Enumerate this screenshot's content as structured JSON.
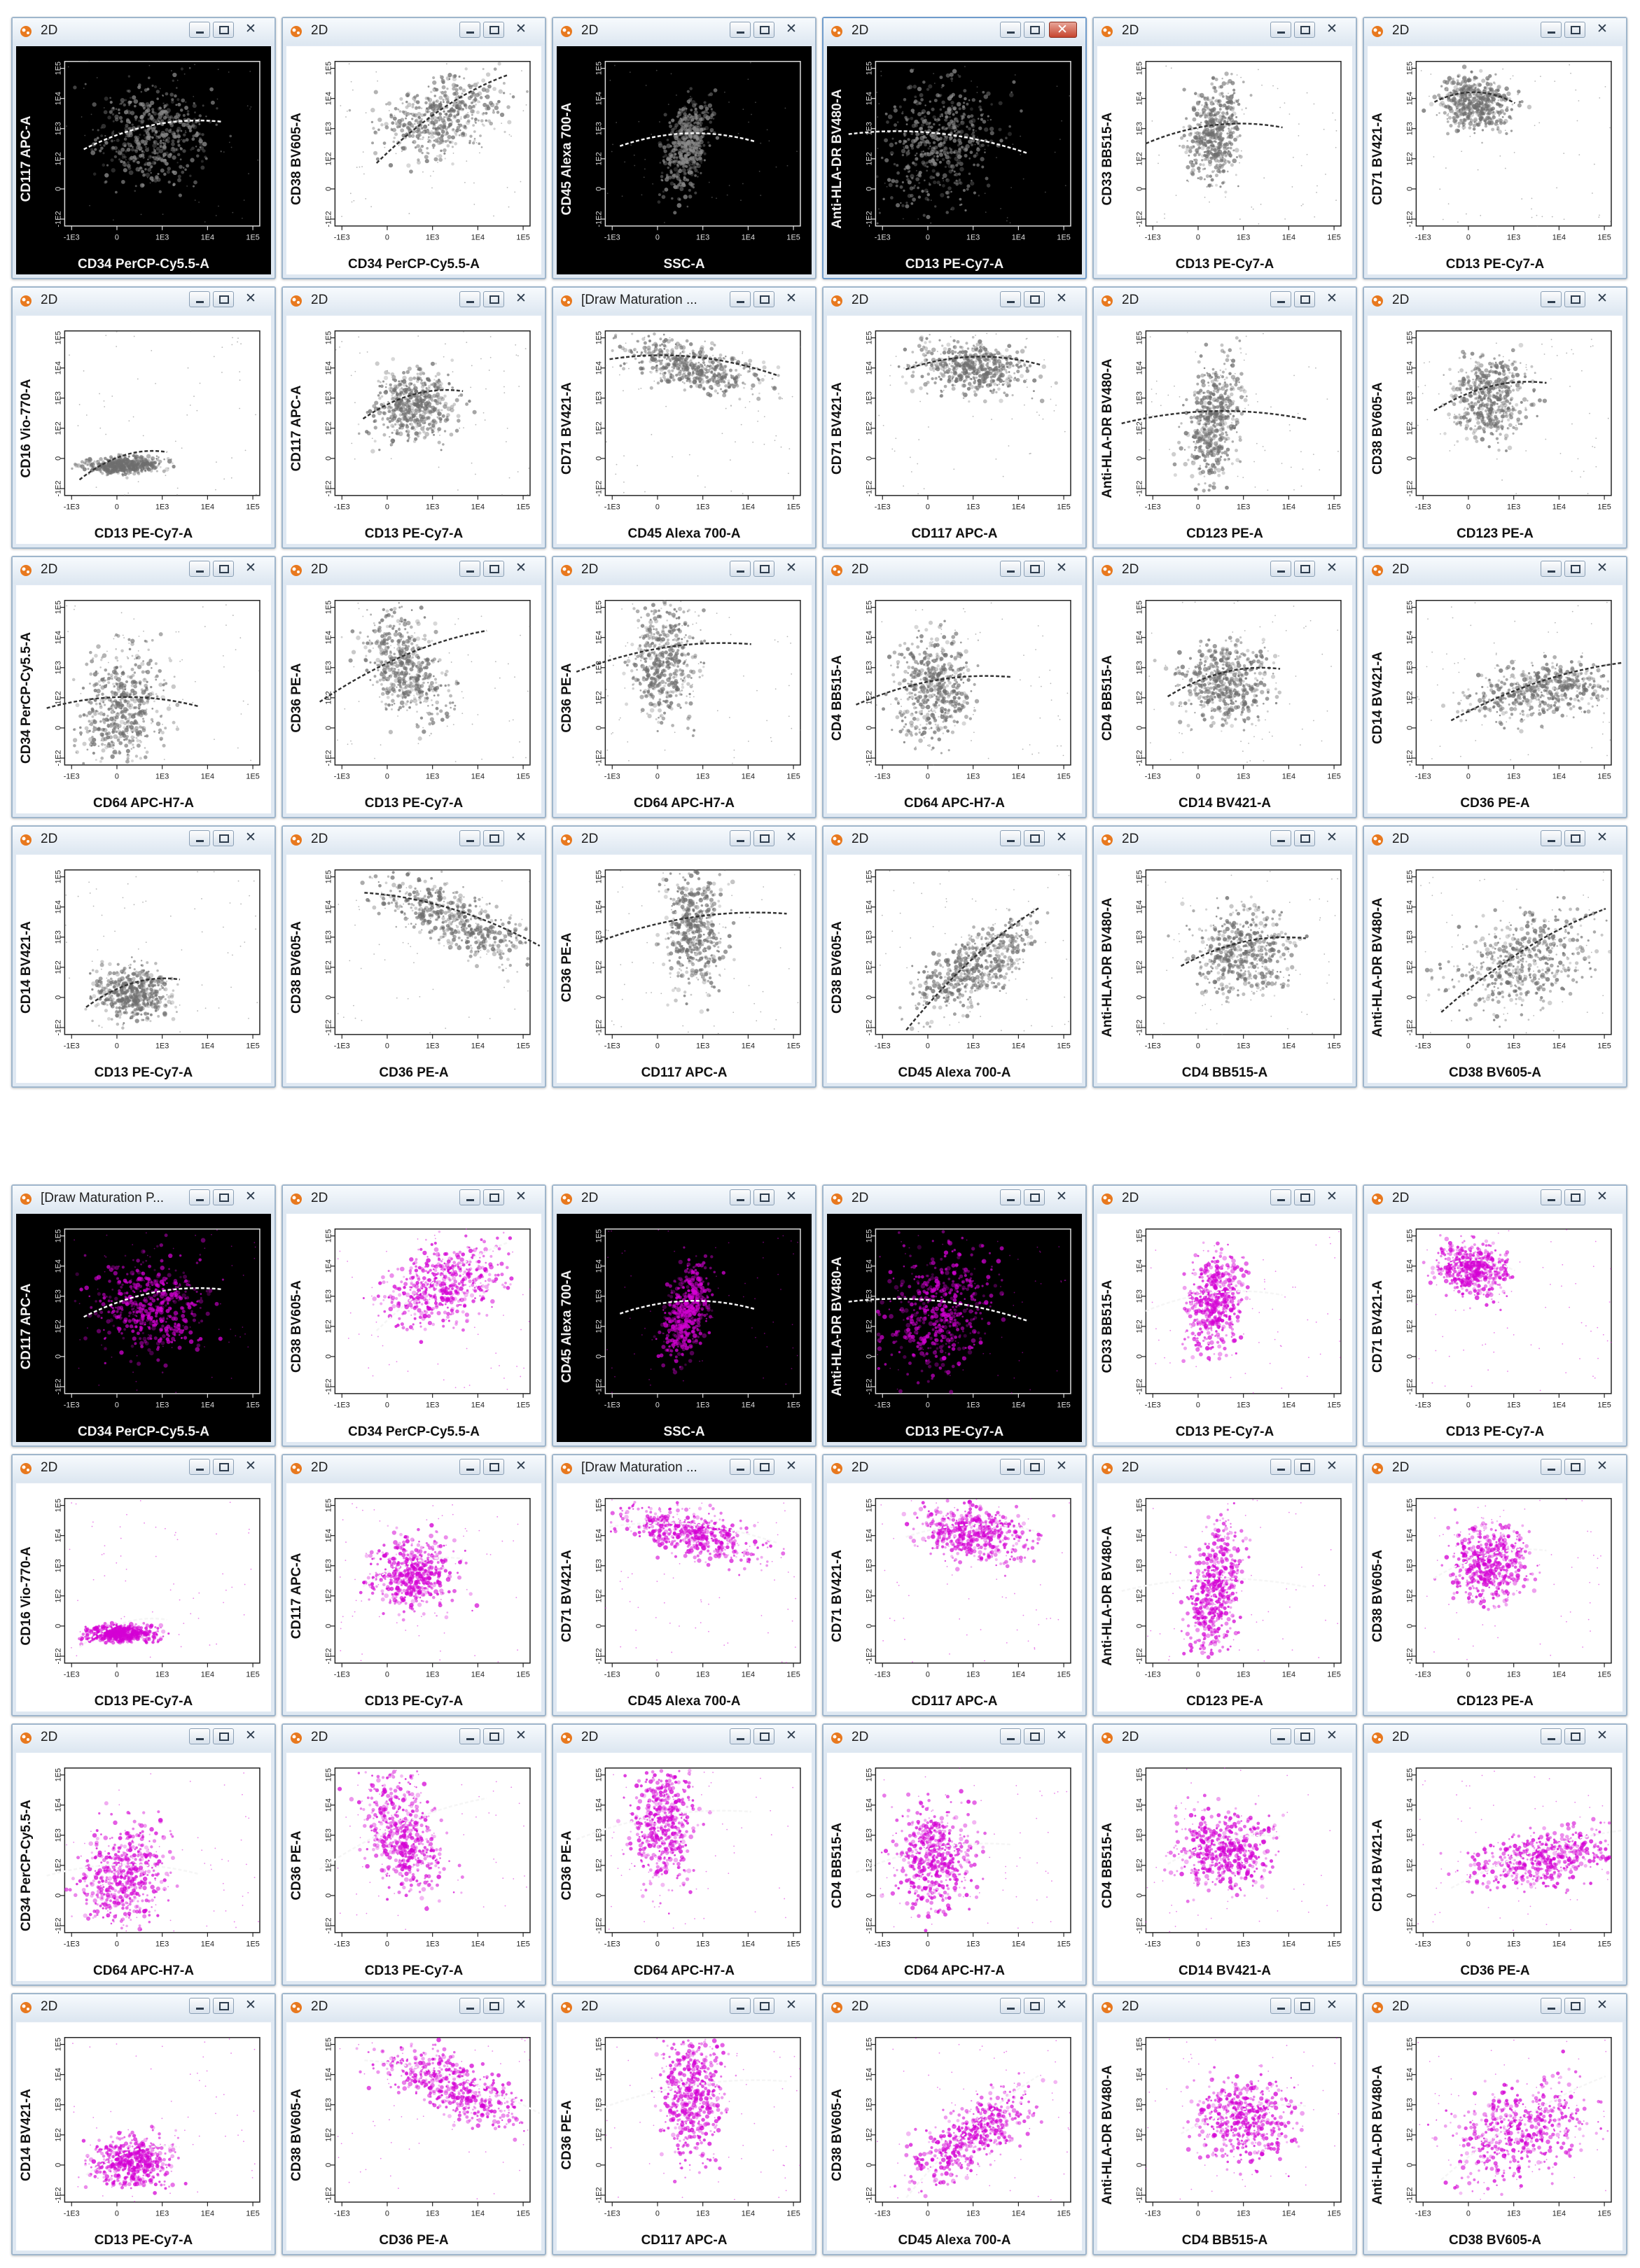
{
  "theme": {
    "gray_block": "#6e6e6e",
    "magenta_block": "#d400d4",
    "trajectory_gray": "#f0f0f0",
    "trajectory_magenta": "#f7f7f7"
  },
  "title_default": "2D",
  "title_draw": "[Draw Maturation ...",
  "title_draw_short": "[Draw Maturation P...",
  "blocks": [
    {
      "id": "gray",
      "color": "#6e6e6e",
      "panels": [
        [
          "CD34 PerCP-Cy5.5-A",
          "CD117 APC-A"
        ],
        [
          "CD34 PerCP-Cy5.5-A",
          "CD38 BV605-A"
        ],
        [
          "SSC-A",
          "CD45 Alexa 700-A"
        ],
        [
          "CD13 PE-Cy7-A",
          "Anti-HLA-DR BV480-A"
        ],
        [
          "CD13 PE-Cy7-A",
          "CD33 BB515-A"
        ],
        [
          "CD13 PE-Cy7-A",
          "CD71 BV421-A"
        ],
        [
          "CD13 PE-Cy7-A",
          "CD16 Vio-770-A"
        ],
        [
          "CD13 PE-Cy7-A",
          "CD117 APC-A"
        ],
        [
          "CD45 Alexa 700-A",
          "CD71 BV421-A"
        ],
        [
          "CD117 APC-A",
          "CD71 BV421-A"
        ],
        [
          "CD123 PE-A",
          "Anti-HLA-DR BV480-A"
        ],
        [
          "CD123 PE-A",
          "CD38 BV605-A"
        ],
        [
          "CD64 APC-H7-A",
          "CD34 PerCP-Cy5.5-A"
        ],
        [
          "CD13 PE-Cy7-A",
          "CD36 PE-A"
        ],
        [
          "CD64 APC-H7-A",
          "CD36 PE-A"
        ],
        [
          "CD64 APC-H7-A",
          "CD4 BB515-A"
        ],
        [
          "CD14 BV421-A",
          "CD4 BB515-A"
        ],
        [
          "CD36 PE-A",
          "CD14 BV421-A"
        ],
        [
          "CD13 PE-Cy7-A",
          "CD14 BV421-A"
        ],
        [
          "CD36 PE-A",
          "CD38 BV605-A"
        ],
        [
          "CD117 APC-A",
          "CD36 PE-A"
        ],
        [
          "CD45 Alexa 700-A",
          "CD38 BV605-A"
        ],
        [
          "CD4 BB515-A",
          "Anti-HLA-DR BV480-A"
        ],
        [
          "CD38 BV605-A",
          "Anti-HLA-DR BV480-A"
        ]
      ]
    },
    {
      "id": "magenta",
      "color": "#d400d4",
      "panels": [
        [
          "CD34 PerCP-Cy5.5-A",
          "CD117 APC-A"
        ],
        [
          "CD34 PerCP-Cy5.5-A",
          "CD38 BV605-A"
        ],
        [
          "SSC-A",
          "CD45 Alexa 700-A"
        ],
        [
          "CD13 PE-Cy7-A",
          "Anti-HLA-DR BV480-A"
        ],
        [
          "CD13 PE-Cy7-A",
          "CD33 BB515-A"
        ],
        [
          "CD13 PE-Cy7-A",
          "CD71 BV421-A"
        ],
        [
          "CD13 PE-Cy7-A",
          "CD16 Vio-770-A"
        ],
        [
          "CD13 PE-Cy7-A",
          "CD117 APC-A"
        ],
        [
          "CD45 Alexa 700-A",
          "CD71 BV421-A"
        ],
        [
          "CD117 APC-A",
          "CD71 BV421-A"
        ],
        [
          "CD123 PE-A",
          "Anti-HLA-DR BV480-A"
        ],
        [
          "CD123 PE-A",
          "CD38 BV605-A"
        ],
        [
          "CD64 APC-H7-A",
          "CD34 PerCP-Cy5.5-A"
        ],
        [
          "CD13 PE-Cy7-A",
          "CD36 PE-A"
        ],
        [
          "CD64 APC-H7-A",
          "CD36 PE-A"
        ],
        [
          "CD64 APC-H7-A",
          "CD4 BB515-A"
        ],
        [
          "CD14 BV421-A",
          "CD4 BB515-A"
        ],
        [
          "CD36 PE-A",
          "CD14 BV421-A"
        ],
        [
          "CD13 PE-Cy7-A",
          "CD14 BV421-A"
        ],
        [
          "CD36 PE-A",
          "CD38 BV605-A"
        ],
        [
          "CD117 APC-A",
          "CD36 PE-A"
        ],
        [
          "CD45 Alexa 700-A",
          "CD38 BV605-A"
        ],
        [
          "CD4 BB515-A",
          "Anti-HLA-DR BV480-A"
        ],
        [
          "CD38 BV605-A",
          "Anti-HLA-DR BV480-A"
        ]
      ]
    }
  ],
  "chart_data": {
    "type": "scatter",
    "grid": false,
    "legend": "none",
    "x_tick_labels": [
      "-1E3",
      "0",
      "1E3",
      "1E4",
      "1E5"
    ],
    "y_tick_labels": [
      "-1E2",
      "0",
      "1E2",
      "1E3",
      "1E4",
      "1E5"
    ],
    "note_on_values": "Flow cytometry density dot plots; individual events are not printed on the image."
  }
}
